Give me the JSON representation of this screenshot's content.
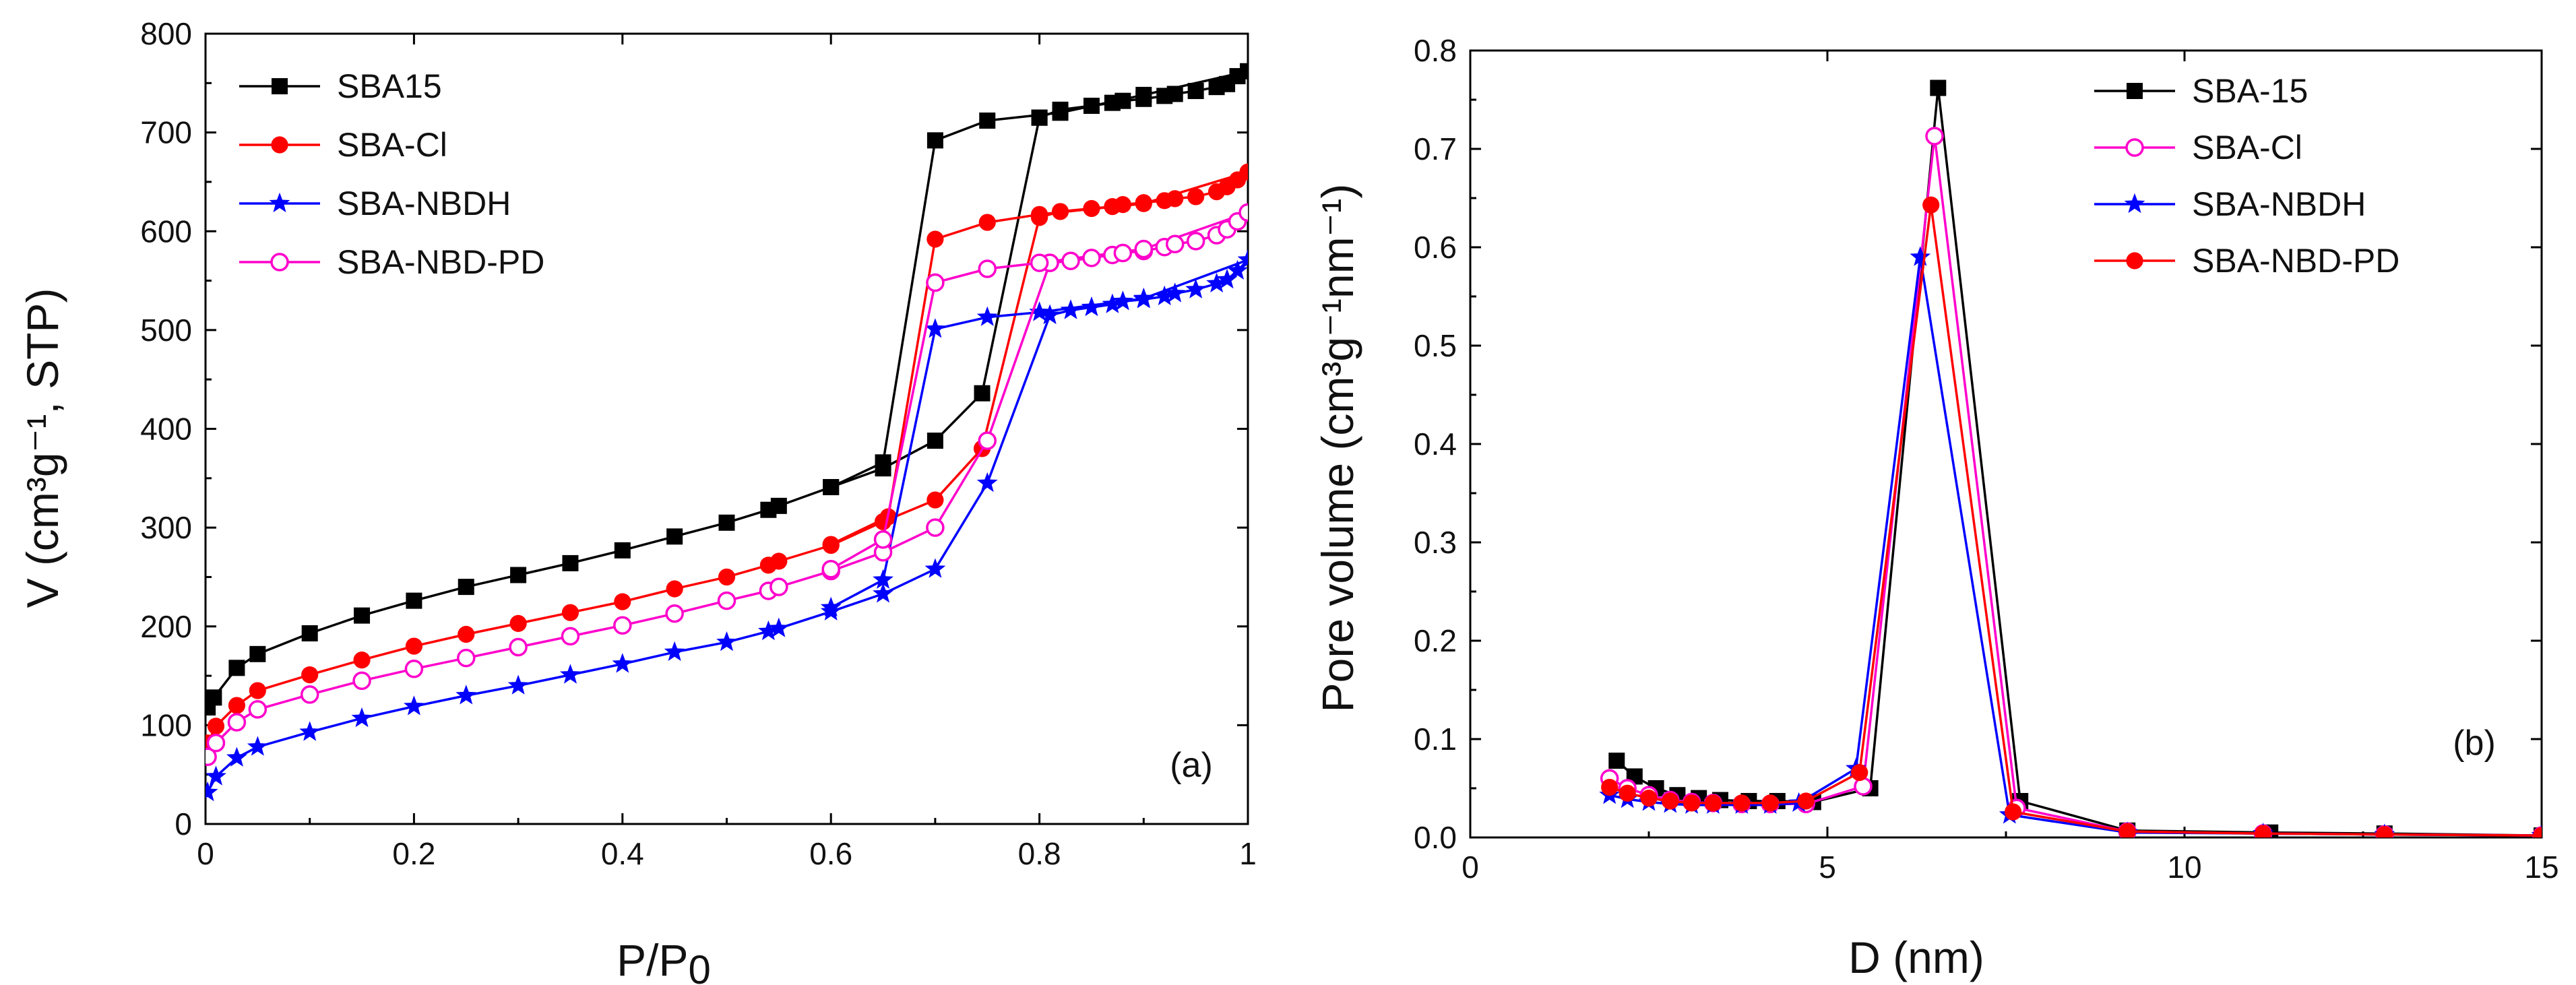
{
  "chart_data": [
    {
      "panel": "(a)",
      "type": "line",
      "title": "",
      "xlabel": "P/P",
      "xlabel_sub": "0",
      "ylabel": "V (cm³g⁻¹, STP)",
      "xlim": [
        0,
        1.0
      ],
      "ylim": [
        0,
        800
      ],
      "xticks": [
        0,
        0.2,
        0.4,
        0.6,
        0.8,
        1.0
      ],
      "yticks": [
        0,
        100,
        200,
        300,
        400,
        500,
        600,
        700,
        800
      ],
      "grid": false,
      "legend_position": "top-left",
      "annotation": "(a)",
      "series": [
        {
          "name": "SBA15",
          "color": "#000000",
          "marker": "square-filled",
          "adsorption": [
            [
              0.002,
              118
            ],
            [
              0.008,
              128
            ],
            [
              0.03,
              158
            ],
            [
              0.05,
              172
            ],
            [
              0.1,
              193
            ],
            [
              0.15,
              211
            ],
            [
              0.2,
              226
            ],
            [
              0.25,
              240
            ],
            [
              0.3,
              252
            ],
            [
              0.35,
              264
            ],
            [
              0.4,
              277
            ],
            [
              0.45,
              291
            ],
            [
              0.5,
              305
            ],
            [
              0.54,
              318
            ],
            [
              0.55,
              322
            ],
            [
              0.6,
              341
            ],
            [
              0.65,
              360
            ],
            [
              0.7,
              388
            ],
            [
              0.745,
              436
            ],
            [
              0.8,
              715
            ]
          ],
          "desorption": [
            [
              0.8,
              715
            ],
            [
              0.82,
              723
            ],
            [
              0.85,
              727
            ],
            [
              0.87,
              730
            ],
            [
              0.88,
              732
            ],
            [
              0.9,
              734
            ],
            [
              0.92,
              737
            ],
            [
              0.93,
              739
            ],
            [
              0.95,
              742
            ],
            [
              0.97,
              746
            ],
            [
              0.98,
              749
            ],
            [
              0.99,
              757
            ],
            [
              1.0,
              762
            ],
            [
              0.9,
              738
            ],
            [
              0.82,
              720
            ],
            [
              0.75,
              712
            ],
            [
              0.7,
              692
            ],
            [
              0.65,
              366
            ],
            [
              0.6,
              341
            ]
          ]
        },
        {
          "name": "SBA-Cl",
          "color": "#ff0000",
          "marker": "circle-filled",
          "adsorption": [
            [
              0.002,
              82
            ],
            [
              0.01,
              99
            ],
            [
              0.03,
              120
            ],
            [
              0.05,
              135
            ],
            [
              0.1,
              151
            ],
            [
              0.15,
              166
            ],
            [
              0.2,
              180
            ],
            [
              0.25,
              192
            ],
            [
              0.3,
              203
            ],
            [
              0.35,
              214
            ],
            [
              0.4,
              225
            ],
            [
              0.45,
              238
            ],
            [
              0.5,
              250
            ],
            [
              0.54,
              262
            ],
            [
              0.55,
              266
            ],
            [
              0.6,
              282
            ],
            [
              0.65,
              306
            ],
            [
              0.7,
              328
            ],
            [
              0.745,
              380
            ],
            [
              0.8,
              614
            ]
          ],
          "desorption": [
            [
              0.8,
              614
            ],
            [
              0.82,
              620
            ],
            [
              0.85,
              623
            ],
            [
              0.87,
              625
            ],
            [
              0.88,
              627
            ],
            [
              0.9,
              629
            ],
            [
              0.92,
              631
            ],
            [
              0.93,
              633
            ],
            [
              0.95,
              635
            ],
            [
              0.97,
              640
            ],
            [
              0.98,
              645
            ],
            [
              0.99,
              652
            ],
            [
              1.0,
              660
            ],
            [
              0.9,
              628
            ],
            [
              0.8,
              617
            ],
            [
              0.75,
              609
            ],
            [
              0.7,
              592
            ],
            [
              0.655,
              311
            ],
            [
              0.6,
              283
            ]
          ]
        },
        {
          "name": "SBA-NBDH",
          "color": "#0000ff",
          "marker": "star-filled",
          "adsorption": [
            [
              0.002,
              32
            ],
            [
              0.01,
              48
            ],
            [
              0.03,
              67
            ],
            [
              0.05,
              78
            ],
            [
              0.1,
              93
            ],
            [
              0.15,
              107
            ],
            [
              0.2,
              119
            ],
            [
              0.25,
              130
            ],
            [
              0.3,
              140
            ],
            [
              0.35,
              151
            ],
            [
              0.4,
              162
            ],
            [
              0.45,
              174
            ],
            [
              0.5,
              184
            ],
            [
              0.54,
              195
            ],
            [
              0.55,
              198
            ],
            [
              0.6,
              215
            ],
            [
              0.65,
              233
            ],
            [
              0.7,
              258
            ],
            [
              0.75,
              345
            ],
            [
              0.81,
              515
            ]
          ],
          "desorption": [
            [
              0.81,
              515
            ],
            [
              0.83,
              520
            ],
            [
              0.85,
              523
            ],
            [
              0.87,
              526
            ],
            [
              0.88,
              529
            ],
            [
              0.9,
              531
            ],
            [
              0.92,
              534
            ],
            [
              0.93,
              537
            ],
            [
              0.95,
              541
            ],
            [
              0.97,
              547
            ],
            [
              0.98,
              551
            ],
            [
              0.99,
              560
            ],
            [
              1.0,
              571
            ],
            [
              0.9,
              532
            ],
            [
              0.8,
              518
            ],
            [
              0.75,
              513
            ],
            [
              0.7,
              501
            ],
            [
              0.65,
              247
            ],
            [
              0.6,
              219
            ]
          ]
        },
        {
          "name": "SBA-NBD-PD",
          "color": "#ff00cc",
          "marker": "circle-open",
          "adsorption": [
            [
              0.002,
              68
            ],
            [
              0.01,
              82
            ],
            [
              0.03,
              103
            ],
            [
              0.05,
              116
            ],
            [
              0.1,
              131
            ],
            [
              0.15,
              145
            ],
            [
              0.2,
              157
            ],
            [
              0.25,
              168
            ],
            [
              0.3,
              179
            ],
            [
              0.35,
              190
            ],
            [
              0.4,
              201
            ],
            [
              0.45,
              213
            ],
            [
              0.5,
              226
            ],
            [
              0.54,
              236
            ],
            [
              0.55,
              240
            ],
            [
              0.6,
              256
            ],
            [
              0.65,
              275
            ],
            [
              0.7,
              300
            ],
            [
              0.75,
              388
            ],
            [
              0.81,
              568
            ]
          ],
          "desorption": [
            [
              0.81,
              568
            ],
            [
              0.83,
              570
            ],
            [
              0.85,
              573
            ],
            [
              0.87,
              576
            ],
            [
              0.88,
              578
            ],
            [
              0.9,
              580
            ],
            [
              0.92,
              584
            ],
            [
              0.93,
              587
            ],
            [
              0.95,
              590
            ],
            [
              0.97,
              596
            ],
            [
              0.98,
              602
            ],
            [
              0.99,
              610
            ],
            [
              1.0,
              619
            ],
            [
              0.9,
              582
            ],
            [
              0.8,
              568
            ],
            [
              0.75,
              562
            ],
            [
              0.7,
              548
            ],
            [
              0.65,
              288
            ],
            [
              0.6,
              258
            ]
          ]
        }
      ]
    },
    {
      "panel": "(b)",
      "type": "line",
      "title": "",
      "xlabel": "D (nm)",
      "ylabel": "Pore volume (cm³g⁻¹nm⁻¹)",
      "xlim": [
        0,
        15
      ],
      "ylim": [
        0,
        0.8
      ],
      "xticks": [
        0,
        5,
        10,
        15
      ],
      "yticks": [
        0.0,
        0.1,
        0.2,
        0.3,
        0.4,
        0.5,
        0.6,
        0.7,
        0.8
      ],
      "ytick_labels": [
        "0.0",
        "0.1",
        "0.2",
        "0.3",
        "0.4",
        "0.5",
        "0.6",
        "0.7",
        "0.8"
      ],
      "grid": false,
      "legend_position": "top-right",
      "annotation": "(b)",
      "series": [
        {
          "name": "SBA-15",
          "color": "#000000",
          "marker": "square-filled",
          "points": [
            [
              2.05,
              0.078
            ],
            [
              2.3,
              0.062
            ],
            [
              2.6,
              0.05
            ],
            [
              2.9,
              0.043
            ],
            [
              3.2,
              0.04
            ],
            [
              3.5,
              0.038
            ],
            [
              3.9,
              0.037
            ],
            [
              4.3,
              0.037
            ],
            [
              4.8,
              0.036
            ],
            [
              5.6,
              0.05
            ],
            [
              6.55,
              0.762
            ],
            [
              7.7,
              0.037
            ],
            [
              9.2,
              0.007
            ],
            [
              11.2,
              0.005
            ],
            [
              12.8,
              0.004
            ],
            [
              15.0,
              0.002
            ]
          ]
        },
        {
          "name": "SBA-Cl",
          "color": "#ff00cc",
          "marker": "circle-open",
          "points": [
            [
              1.95,
              0.06
            ],
            [
              2.2,
              0.05
            ],
            [
              2.5,
              0.043
            ],
            [
              2.8,
              0.038
            ],
            [
              3.1,
              0.036
            ],
            [
              3.4,
              0.035
            ],
            [
              3.8,
              0.034
            ],
            [
              4.2,
              0.034
            ],
            [
              4.7,
              0.034
            ],
            [
              5.5,
              0.052
            ],
            [
              6.5,
              0.713
            ],
            [
              7.65,
              0.03
            ],
            [
              9.2,
              0.006
            ],
            [
              11.1,
              0.004
            ],
            [
              12.8,
              0.003
            ],
            [
              15.0,
              0.002
            ]
          ]
        },
        {
          "name": "SBA-NBDH",
          "color": "#0000ff",
          "marker": "star-filled",
          "points": [
            [
              1.95,
              0.043
            ],
            [
              2.2,
              0.039
            ],
            [
              2.5,
              0.036
            ],
            [
              2.8,
              0.034
            ],
            [
              3.1,
              0.033
            ],
            [
              3.4,
              0.033
            ],
            [
              3.8,
              0.033
            ],
            [
              4.2,
              0.033
            ],
            [
              4.6,
              0.035
            ],
            [
              5.4,
              0.07
            ],
            [
              6.3,
              0.59
            ],
            [
              7.55,
              0.023
            ],
            [
              9.2,
              0.005
            ],
            [
              11.1,
              0.004
            ],
            [
              12.8,
              0.003
            ],
            [
              15.0,
              0.002
            ]
          ]
        },
        {
          "name": "SBA-NBD-PD",
          "color": "#ff0000",
          "marker": "circle-filled",
          "points": [
            [
              1.95,
              0.051
            ],
            [
              2.2,
              0.045
            ],
            [
              2.5,
              0.04
            ],
            [
              2.8,
              0.037
            ],
            [
              3.1,
              0.035
            ],
            [
              3.4,
              0.035
            ],
            [
              3.8,
              0.035
            ],
            [
              4.2,
              0.035
            ],
            [
              4.7,
              0.037
            ],
            [
              5.45,
              0.066
            ],
            [
              6.45,
              0.643
            ],
            [
              7.6,
              0.026
            ],
            [
              9.2,
              0.006
            ],
            [
              11.1,
              0.004
            ],
            [
              12.8,
              0.003
            ],
            [
              15.0,
              0.002
            ]
          ]
        }
      ]
    }
  ]
}
